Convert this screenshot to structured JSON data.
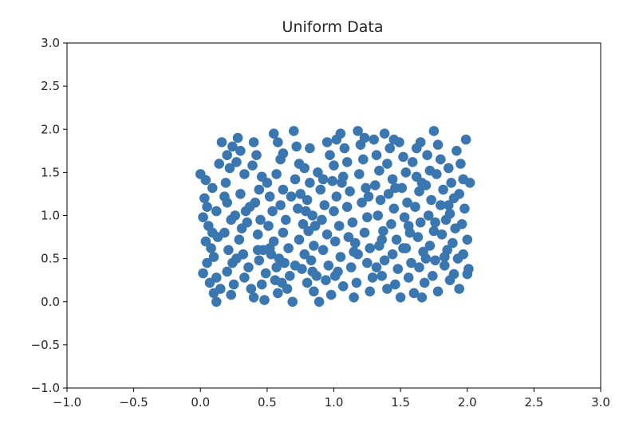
{
  "chart_data": {
    "type": "scatter",
    "title": "Uniform Data",
    "xlabel": "",
    "ylabel": "",
    "xlim": [
      -1.0,
      3.0
    ],
    "ylim": [
      -1.0,
      3.0
    ],
    "xticks": [
      "−1.0",
      "−0.5",
      "0.0",
      "0.5",
      "1.0",
      "1.5",
      "2.0",
      "2.5",
      "3.0"
    ],
    "yticks": [
      "−1.0",
      "−0.5",
      "0.0",
      "0.5",
      "1.0",
      "1.5",
      "2.0",
      "2.5",
      "3.0"
    ],
    "xtick_values": [
      -1.0,
      -0.5,
      0.0,
      0.5,
      1.0,
      1.5,
      2.0,
      2.5,
      3.0
    ],
    "ytick_values": [
      -1.0,
      -0.5,
      0.0,
      0.5,
      1.0,
      1.5,
      2.0,
      2.5,
      3.0
    ],
    "grid": false,
    "marker_color": "#3a76af",
    "series": [
      {
        "points": [
          [
            0.0,
            1.48
          ],
          [
            0.04,
            1.41
          ],
          [
            0.03,
            1.2
          ],
          [
            0.05,
            1.1
          ],
          [
            0.02,
            0.98
          ],
          [
            0.06,
            0.88
          ],
          [
            0.04,
            0.7
          ],
          [
            0.08,
            0.62
          ],
          [
            0.05,
            0.45
          ],
          [
            0.02,
            0.33
          ],
          [
            0.07,
            0.22
          ],
          [
            0.1,
            0.1
          ],
          [
            0.12,
            0.0
          ],
          [
            0.15,
            0.15
          ],
          [
            0.12,
            0.28
          ],
          [
            0.1,
            0.52
          ],
          [
            0.13,
            0.75
          ],
          [
            0.12,
            1.05
          ],
          [
            0.09,
            1.32
          ],
          [
            0.14,
            1.6
          ],
          [
            0.16,
            1.85
          ],
          [
            0.2,
            1.7
          ],
          [
            0.22,
            1.55
          ],
          [
            0.19,
            1.38
          ],
          [
            0.2,
            1.15
          ],
          [
            0.23,
            0.95
          ],
          [
            0.18,
            0.8
          ],
          [
            0.21,
            0.6
          ],
          [
            0.24,
            0.45
          ],
          [
            0.2,
            0.35
          ],
          [
            0.25,
            0.2
          ],
          [
            0.23,
            0.08
          ],
          [
            0.28,
            1.9
          ],
          [
            0.3,
            1.75
          ],
          [
            0.27,
            1.62
          ],
          [
            0.33,
            1.48
          ],
          [
            0.3,
            1.25
          ],
          [
            0.34,
            1.05
          ],
          [
            0.31,
            0.85
          ],
          [
            0.29,
            0.72
          ],
          [
            0.32,
            0.55
          ],
          [
            0.36,
            0.4
          ],
          [
            0.33,
            0.28
          ],
          [
            0.38,
            0.15
          ],
          [
            0.4,
            0.05
          ],
          [
            0.42,
            1.7
          ],
          [
            0.39,
            1.58
          ],
          [
            0.44,
            1.3
          ],
          [
            0.41,
            1.15
          ],
          [
            0.45,
            0.95
          ],
          [
            0.43,
            0.78
          ],
          [
            0.47,
            0.6
          ],
          [
            0.44,
            0.48
          ],
          [
            0.49,
            0.33
          ],
          [
            0.46,
            0.2
          ],
          [
            0.48,
            0.02
          ],
          [
            0.5,
            1.38
          ],
          [
            0.52,
            1.22
          ],
          [
            0.54,
            1.05
          ],
          [
            0.51,
            0.88
          ],
          [
            0.55,
            0.7
          ],
          [
            0.53,
            0.55
          ],
          [
            0.57,
            0.4
          ],
          [
            0.56,
            0.25
          ],
          [
            0.58,
            0.1
          ],
          [
            0.55,
            1.95
          ],
          [
            0.58,
            1.85
          ],
          [
            0.6,
            1.65
          ],
          [
            0.57,
            1.48
          ],
          [
            0.62,
            1.3
          ],
          [
            0.6,
            1.12
          ],
          [
            0.64,
            0.95
          ],
          [
            0.62,
            0.8
          ],
          [
            0.66,
            0.62
          ],
          [
            0.63,
            0.45
          ],
          [
            0.67,
            0.3
          ],
          [
            0.65,
            0.15
          ],
          [
            0.69,
            0.0
          ],
          [
            0.7,
            1.98
          ],
          [
            0.72,
            1.8
          ],
          [
            0.74,
            1.6
          ],
          [
            0.71,
            1.42
          ],
          [
            0.75,
            1.25
          ],
          [
            0.73,
            1.08
          ],
          [
            0.77,
            0.9
          ],
          [
            0.74,
            0.72
          ],
          [
            0.78,
            0.55
          ],
          [
            0.76,
            0.38
          ],
          [
            0.8,
            0.22
          ],
          [
            0.78,
            1.55
          ],
          [
            0.82,
            1.38
          ],
          [
            0.8,
            1.18
          ],
          [
            0.84,
            1.0
          ],
          [
            0.81,
            0.82
          ],
          [
            0.85,
            0.65
          ],
          [
            0.83,
            0.48
          ],
          [
            0.87,
            0.3
          ],
          [
            0.85,
            0.12
          ],
          [
            0.89,
            0.0
          ],
          [
            0.88,
            1.5
          ],
          [
            0.9,
            1.3
          ],
          [
            0.93,
            1.12
          ],
          [
            0.91,
            0.95
          ],
          [
            0.95,
            0.78
          ],
          [
            0.92,
            0.6
          ],
          [
            0.96,
            0.42
          ],
          [
            0.94,
            0.25
          ],
          [
            0.98,
            0.08
          ],
          [
            0.95,
            1.85
          ],
          [
            0.97,
            1.7
          ],
          [
            1.0,
            1.58
          ],
          [
            0.99,
            1.4
          ],
          [
            1.02,
            1.22
          ],
          [
            1.0,
            1.05
          ],
          [
            1.04,
            0.88
          ],
          [
            1.01,
            0.7
          ],
          [
            1.05,
            0.52
          ],
          [
            1.03,
            0.35
          ],
          [
            1.07,
            0.18
          ],
          [
            1.05,
            1.95
          ],
          [
            1.08,
            1.78
          ],
          [
            1.1,
            1.62
          ],
          [
            1.07,
            1.45
          ],
          [
            1.12,
            1.28
          ],
          [
            1.1,
            1.1
          ],
          [
            1.14,
            0.92
          ],
          [
            1.11,
            0.75
          ],
          [
            1.15,
            0.58
          ],
          [
            1.13,
            0.4
          ],
          [
            1.17,
            0.22
          ],
          [
            1.15,
            0.05
          ],
          [
            1.18,
            1.98
          ],
          [
            1.2,
            1.82
          ],
          [
            1.22,
            1.65
          ],
          [
            1.19,
            1.48
          ],
          [
            1.24,
            1.32
          ],
          [
            1.21,
            1.15
          ],
          [
            1.25,
            0.98
          ],
          [
            1.23,
            0.8
          ],
          [
            1.27,
            0.62
          ],
          [
            1.25,
            0.45
          ],
          [
            1.29,
            0.28
          ],
          [
            1.27,
            0.12
          ],
          [
            1.3,
            1.88
          ],
          [
            1.32,
            1.7
          ],
          [
            1.34,
            1.52
          ],
          [
            1.31,
            1.35
          ],
          [
            1.35,
            1.18
          ],
          [
            1.33,
            1.0
          ],
          [
            1.37,
            0.82
          ],
          [
            1.34,
            0.65
          ],
          [
            1.38,
            0.48
          ],
          [
            1.36,
            0.3
          ],
          [
            1.4,
            0.15
          ],
          [
            1.38,
            1.95
          ],
          [
            1.42,
            1.78
          ],
          [
            1.4,
            1.6
          ],
          [
            1.44,
            1.42
          ],
          [
            1.41,
            1.25
          ],
          [
            1.45,
            1.08
          ],
          [
            1.43,
            0.9
          ],
          [
            1.47,
            0.72
          ],
          [
            1.44,
            0.55
          ],
          [
            1.48,
            0.38
          ],
          [
            1.46,
            0.2
          ],
          [
            1.5,
            0.05
          ],
          [
            1.49,
            1.85
          ],
          [
            1.52,
            1.68
          ],
          [
            1.54,
            1.5
          ],
          [
            1.51,
            1.32
          ],
          [
            1.55,
            1.15
          ],
          [
            1.53,
            0.98
          ],
          [
            1.57,
            0.8
          ],
          [
            1.54,
            0.62
          ],
          [
            1.58,
            0.45
          ],
          [
            1.56,
            0.28
          ],
          [
            1.6,
            0.1
          ],
          [
            1.59,
            1.62
          ],
          [
            1.62,
            1.45
          ],
          [
            1.64,
            1.28
          ],
          [
            1.61,
            1.1
          ],
          [
            1.65,
            0.92
          ],
          [
            1.63,
            0.75
          ],
          [
            1.67,
            0.58
          ],
          [
            1.64,
            0.4
          ],
          [
            1.68,
            0.22
          ],
          [
            1.66,
            0.05
          ],
          [
            1.65,
            1.85
          ],
          [
            1.7,
            1.7
          ],
          [
            1.72,
            1.52
          ],
          [
            1.69,
            1.35
          ],
          [
            1.73,
            1.18
          ],
          [
            1.71,
            1.0
          ],
          [
            1.75,
            0.82
          ],
          [
            1.72,
            0.65
          ],
          [
            1.76,
            0.48
          ],
          [
            1.74,
            0.3
          ],
          [
            1.78,
            0.12
          ],
          [
            1.75,
            1.98
          ],
          [
            1.78,
            1.82
          ],
          [
            1.8,
            1.65
          ],
          [
            1.77,
            1.48
          ],
          [
            1.82,
            1.3
          ],
          [
            1.8,
            1.12
          ],
          [
            1.84,
            0.95
          ],
          [
            1.81,
            0.78
          ],
          [
            1.85,
            0.6
          ],
          [
            1.83,
            0.42
          ],
          [
            1.87,
            0.25
          ],
          [
            1.86,
            1.55
          ],
          [
            1.88,
            1.38
          ],
          [
            1.9,
            1.2
          ],
          [
            1.87,
            1.02
          ],
          [
            1.91,
            0.85
          ],
          [
            1.89,
            0.68
          ],
          [
            1.93,
            0.5
          ],
          [
            1.9,
            0.32
          ],
          [
            1.94,
            0.15
          ],
          [
            1.92,
            1.75
          ],
          [
            1.95,
            1.6
          ],
          [
            1.97,
            1.42
          ],
          [
            1.94,
            1.25
          ],
          [
            1.98,
            1.08
          ],
          [
            1.96,
            0.9
          ],
          [
            2.0,
            0.72
          ],
          [
            1.97,
            0.55
          ],
          [
            2.01,
            0.38
          ],
          [
            1.99,
            1.88
          ],
          [
            2.02,
            1.38
          ],
          [
            2.0,
            0.32
          ],
          [
            0.18,
            1.22
          ],
          [
            0.26,
            1.0
          ],
          [
            0.35,
            0.92
          ],
          [
            0.37,
            1.1
          ],
          [
            0.46,
            1.45
          ],
          [
            0.52,
            0.62
          ],
          [
            0.61,
            0.22
          ],
          [
            0.68,
            1.22
          ],
          [
            0.79,
            1.05
          ],
          [
            0.86,
            0.88
          ],
          [
            0.92,
            1.42
          ],
          [
            1.06,
            1.38
          ],
          [
            1.16,
            0.68
          ],
          [
            1.26,
            1.22
          ],
          [
            1.36,
            0.72
          ],
          [
            1.46,
            1.32
          ],
          [
            1.56,
            0.88
          ],
          [
            1.66,
            1.38
          ],
          [
            1.76,
            0.92
          ],
          [
            1.86,
            1.12
          ],
          [
            0.09,
            0.8
          ],
          [
            0.27,
            0.5
          ],
          [
            0.43,
            0.6
          ],
          [
            0.59,
            0.5
          ],
          [
            0.71,
            0.42
          ],
          [
            0.84,
            0.35
          ],
          [
            1.01,
            0.3
          ],
          [
            1.18,
            0.55
          ],
          [
            1.32,
            0.4
          ],
          [
            1.52,
            0.62
          ],
          [
            1.69,
            0.5
          ],
          [
            1.83,
            0.52
          ],
          [
            0.24,
            1.8
          ],
          [
            0.4,
            1.85
          ],
          [
            0.62,
            1.72
          ],
          [
            0.82,
            1.78
          ],
          [
            1.02,
            1.88
          ],
          [
            1.23,
            1.9
          ],
          [
            1.45,
            1.88
          ],
          [
            1.62,
            1.78
          ]
        ]
      }
    ]
  }
}
